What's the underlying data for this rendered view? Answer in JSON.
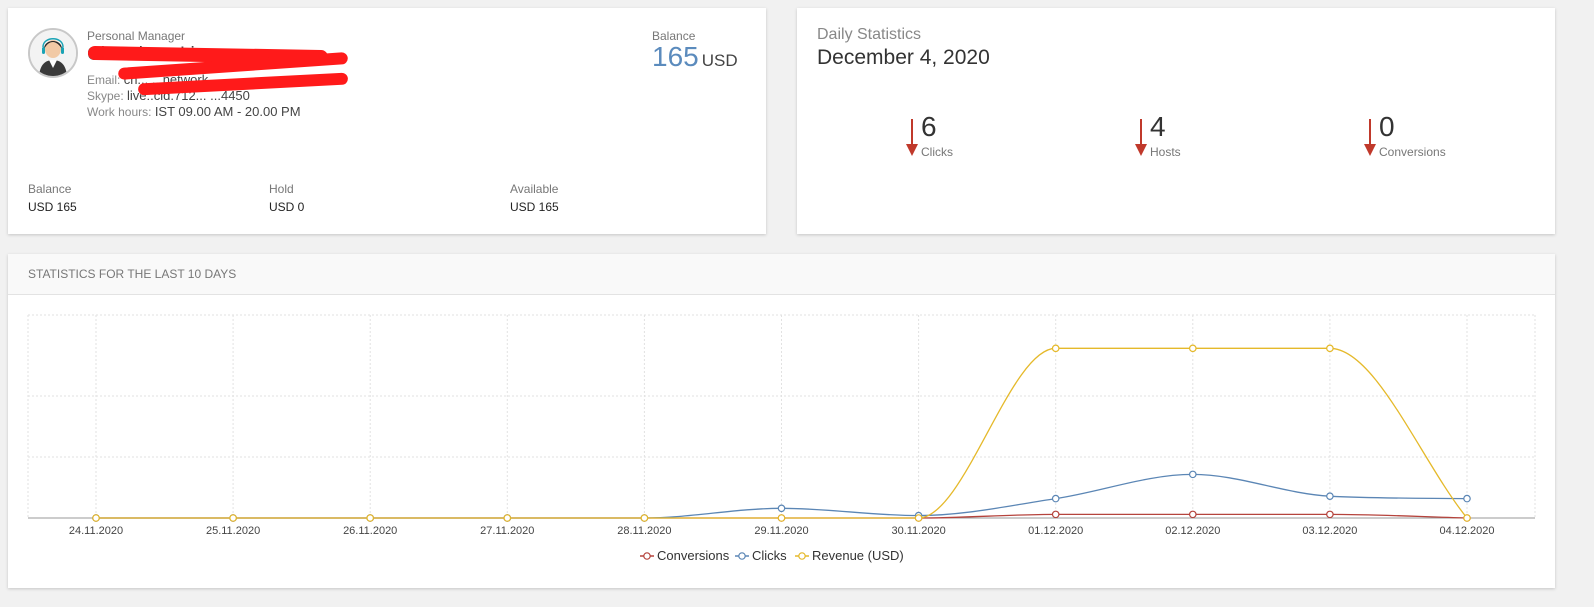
{
  "manager": {
    "label": "Personal Manager",
    "name": "Chandana Liv... ...ge",
    "email_label": "Email:",
    "email_value": "ch... ...network",
    "skype_label": "Skype:",
    "skype_value": "live:.cid.712... ...4450",
    "hours_label": "Work hours:",
    "hours_value": "IST 09.00 AM - 20.00 PM",
    "balance_label": "Balance",
    "balance_value": "165",
    "balance_currency": "USD",
    "footer": [
      {
        "label": "Balance",
        "value": "USD 165"
      },
      {
        "label": "Hold",
        "value": "USD 0"
      },
      {
        "label": "Available",
        "value": "USD 165"
      }
    ]
  },
  "daily": {
    "title": "Daily Statistics",
    "date": "December 4, 2020",
    "stats": [
      {
        "value": "6",
        "label": "Clicks"
      },
      {
        "value": "4",
        "label": "Hosts"
      },
      {
        "value": "0",
        "label": "Conversions"
      }
    ],
    "arrow_color": "#c0392b"
  },
  "chart_section": {
    "title": "STATISTICS FOR THE LAST 10 DAYS"
  },
  "chart_data": {
    "type": "line",
    "x": [
      "24.11.2020",
      "25.11.2020",
      "26.11.2020",
      "27.11.2020",
      "28.11.2020",
      "29.11.2020",
      "30.11.2020",
      "01.12.2020",
      "02.12.2020",
      "03.12.2020",
      "04.12.2020"
    ],
    "series": [
      {
        "name": "Conversions",
        "color": "#b5433c",
        "values": [
          0,
          0,
          0,
          0,
          0,
          0,
          0,
          0.3,
          0.3,
          0.3,
          0
        ]
      },
      {
        "name": "Clicks",
        "color": "#5b86b5",
        "values": [
          0,
          0,
          0,
          0,
          0,
          0.8,
          0.2,
          1.6,
          3.6,
          1.8,
          1.6
        ]
      },
      {
        "name": "Revenue (USD)",
        "color": "#e5b92a",
        "values": [
          0,
          0,
          0,
          0,
          0,
          0,
          0,
          14,
          14,
          14,
          0
        ]
      }
    ],
    "ylim": [
      0,
      16.75
    ],
    "grid": true,
    "legend": "bottom"
  }
}
